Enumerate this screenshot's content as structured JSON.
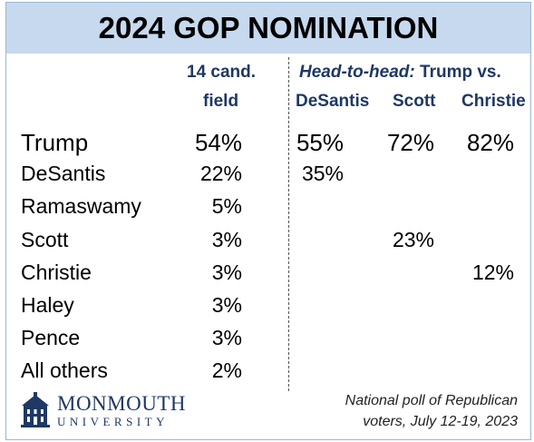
{
  "chart_data": {
    "type": "table",
    "title": "2024 GOP NOMINATION",
    "columns": [
      {
        "key": "field",
        "header_lines": [
          "14 cand.",
          "field"
        ]
      },
      {
        "key": "desantis",
        "header": "DeSantis"
      },
      {
        "key": "scott",
        "header": "Scott"
      },
      {
        "key": "christie",
        "header": "Christie"
      }
    ],
    "group_header": {
      "italic": "Head-to-head:",
      "text": "Trump vs."
    },
    "rows": [
      {
        "label": "Trump",
        "values": [
          "54%",
          "55%",
          "72%",
          "82%"
        ]
      },
      {
        "label": "DeSantis",
        "values": [
          "22%",
          "35%",
          "",
          ""
        ]
      },
      {
        "label": "Ramaswamy",
        "values": [
          "5%",
          "",
          "",
          ""
        ]
      },
      {
        "label": "Scott",
        "values": [
          "3%",
          "",
          "23%",
          ""
        ]
      },
      {
        "label": "Christie",
        "values": [
          "3%",
          "",
          "",
          "12%"
        ]
      },
      {
        "label": "Haley",
        "values": [
          "3%",
          "",
          "",
          ""
        ]
      },
      {
        "label": "Pence",
        "values": [
          "3%",
          "",
          "",
          ""
        ]
      },
      {
        "label": "All others",
        "values": [
          "2%",
          "",
          "",
          ""
        ]
      }
    ]
  },
  "footer": {
    "note_line1": "National poll of Republican",
    "note_line2": "voters,  July 12-19, 2023"
  },
  "logo": {
    "name": "MONMOUTH",
    "sub": "UNIVERSITY",
    "icon": "university-building-icon"
  },
  "colors": {
    "title_bg": "#c7d9ee",
    "header_text": "#1f3864",
    "border": "#9bb7d4"
  }
}
